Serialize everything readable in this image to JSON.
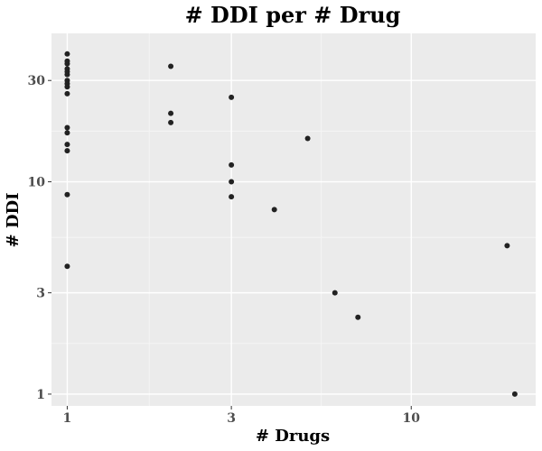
{
  "chart_data": {
    "type": "scatter",
    "title": "# DDI per # Drug",
    "xlabel": "# Drugs",
    "ylabel": "# DDI",
    "x_scale": "log10",
    "y_scale": "log10",
    "xlim": [
      0.9,
      23
    ],
    "ylim": [
      0.88,
      50
    ],
    "x_ticks": [
      1,
      3,
      10
    ],
    "y_ticks": [
      1,
      3,
      10,
      30
    ],
    "x_tick_labels": [
      "1",
      "3",
      "10"
    ],
    "y_tick_labels": [
      "1",
      "3",
      "10",
      "30"
    ],
    "grid": true,
    "legend": "none",
    "colors": {
      "panel_background": "#ebebeb",
      "grid_major": "#ffffff",
      "grid_minor": "#f5f5f5",
      "point": "#222222"
    },
    "points": [
      {
        "x": 1,
        "y": 40
      },
      {
        "x": 1,
        "y": 37
      },
      {
        "x": 1,
        "y": 36
      },
      {
        "x": 1,
        "y": 34
      },
      {
        "x": 1,
        "y": 33
      },
      {
        "x": 1,
        "y": 32
      },
      {
        "x": 1,
        "y": 30
      },
      {
        "x": 1,
        "y": 29
      },
      {
        "x": 1,
        "y": 28
      },
      {
        "x": 1,
        "y": 26
      },
      {
        "x": 1,
        "y": 18
      },
      {
        "x": 1,
        "y": 17
      },
      {
        "x": 1,
        "y": 15
      },
      {
        "x": 1,
        "y": 14
      },
      {
        "x": 1,
        "y": 8.7
      },
      {
        "x": 1,
        "y": 4
      },
      {
        "x": 2,
        "y": 35
      },
      {
        "x": 2,
        "y": 21
      },
      {
        "x": 2,
        "y": 19
      },
      {
        "x": 3,
        "y": 25
      },
      {
        "x": 3,
        "y": 12
      },
      {
        "x": 3,
        "y": 10
      },
      {
        "x": 3,
        "y": 8.5
      },
      {
        "x": 4,
        "y": 7.4
      },
      {
        "x": 5,
        "y": 16
      },
      {
        "x": 6,
        "y": 3
      },
      {
        "x": 7,
        "y": 2.3
      },
      {
        "x": 19,
        "y": 5
      },
      {
        "x": 20,
        "y": 1
      }
    ]
  }
}
